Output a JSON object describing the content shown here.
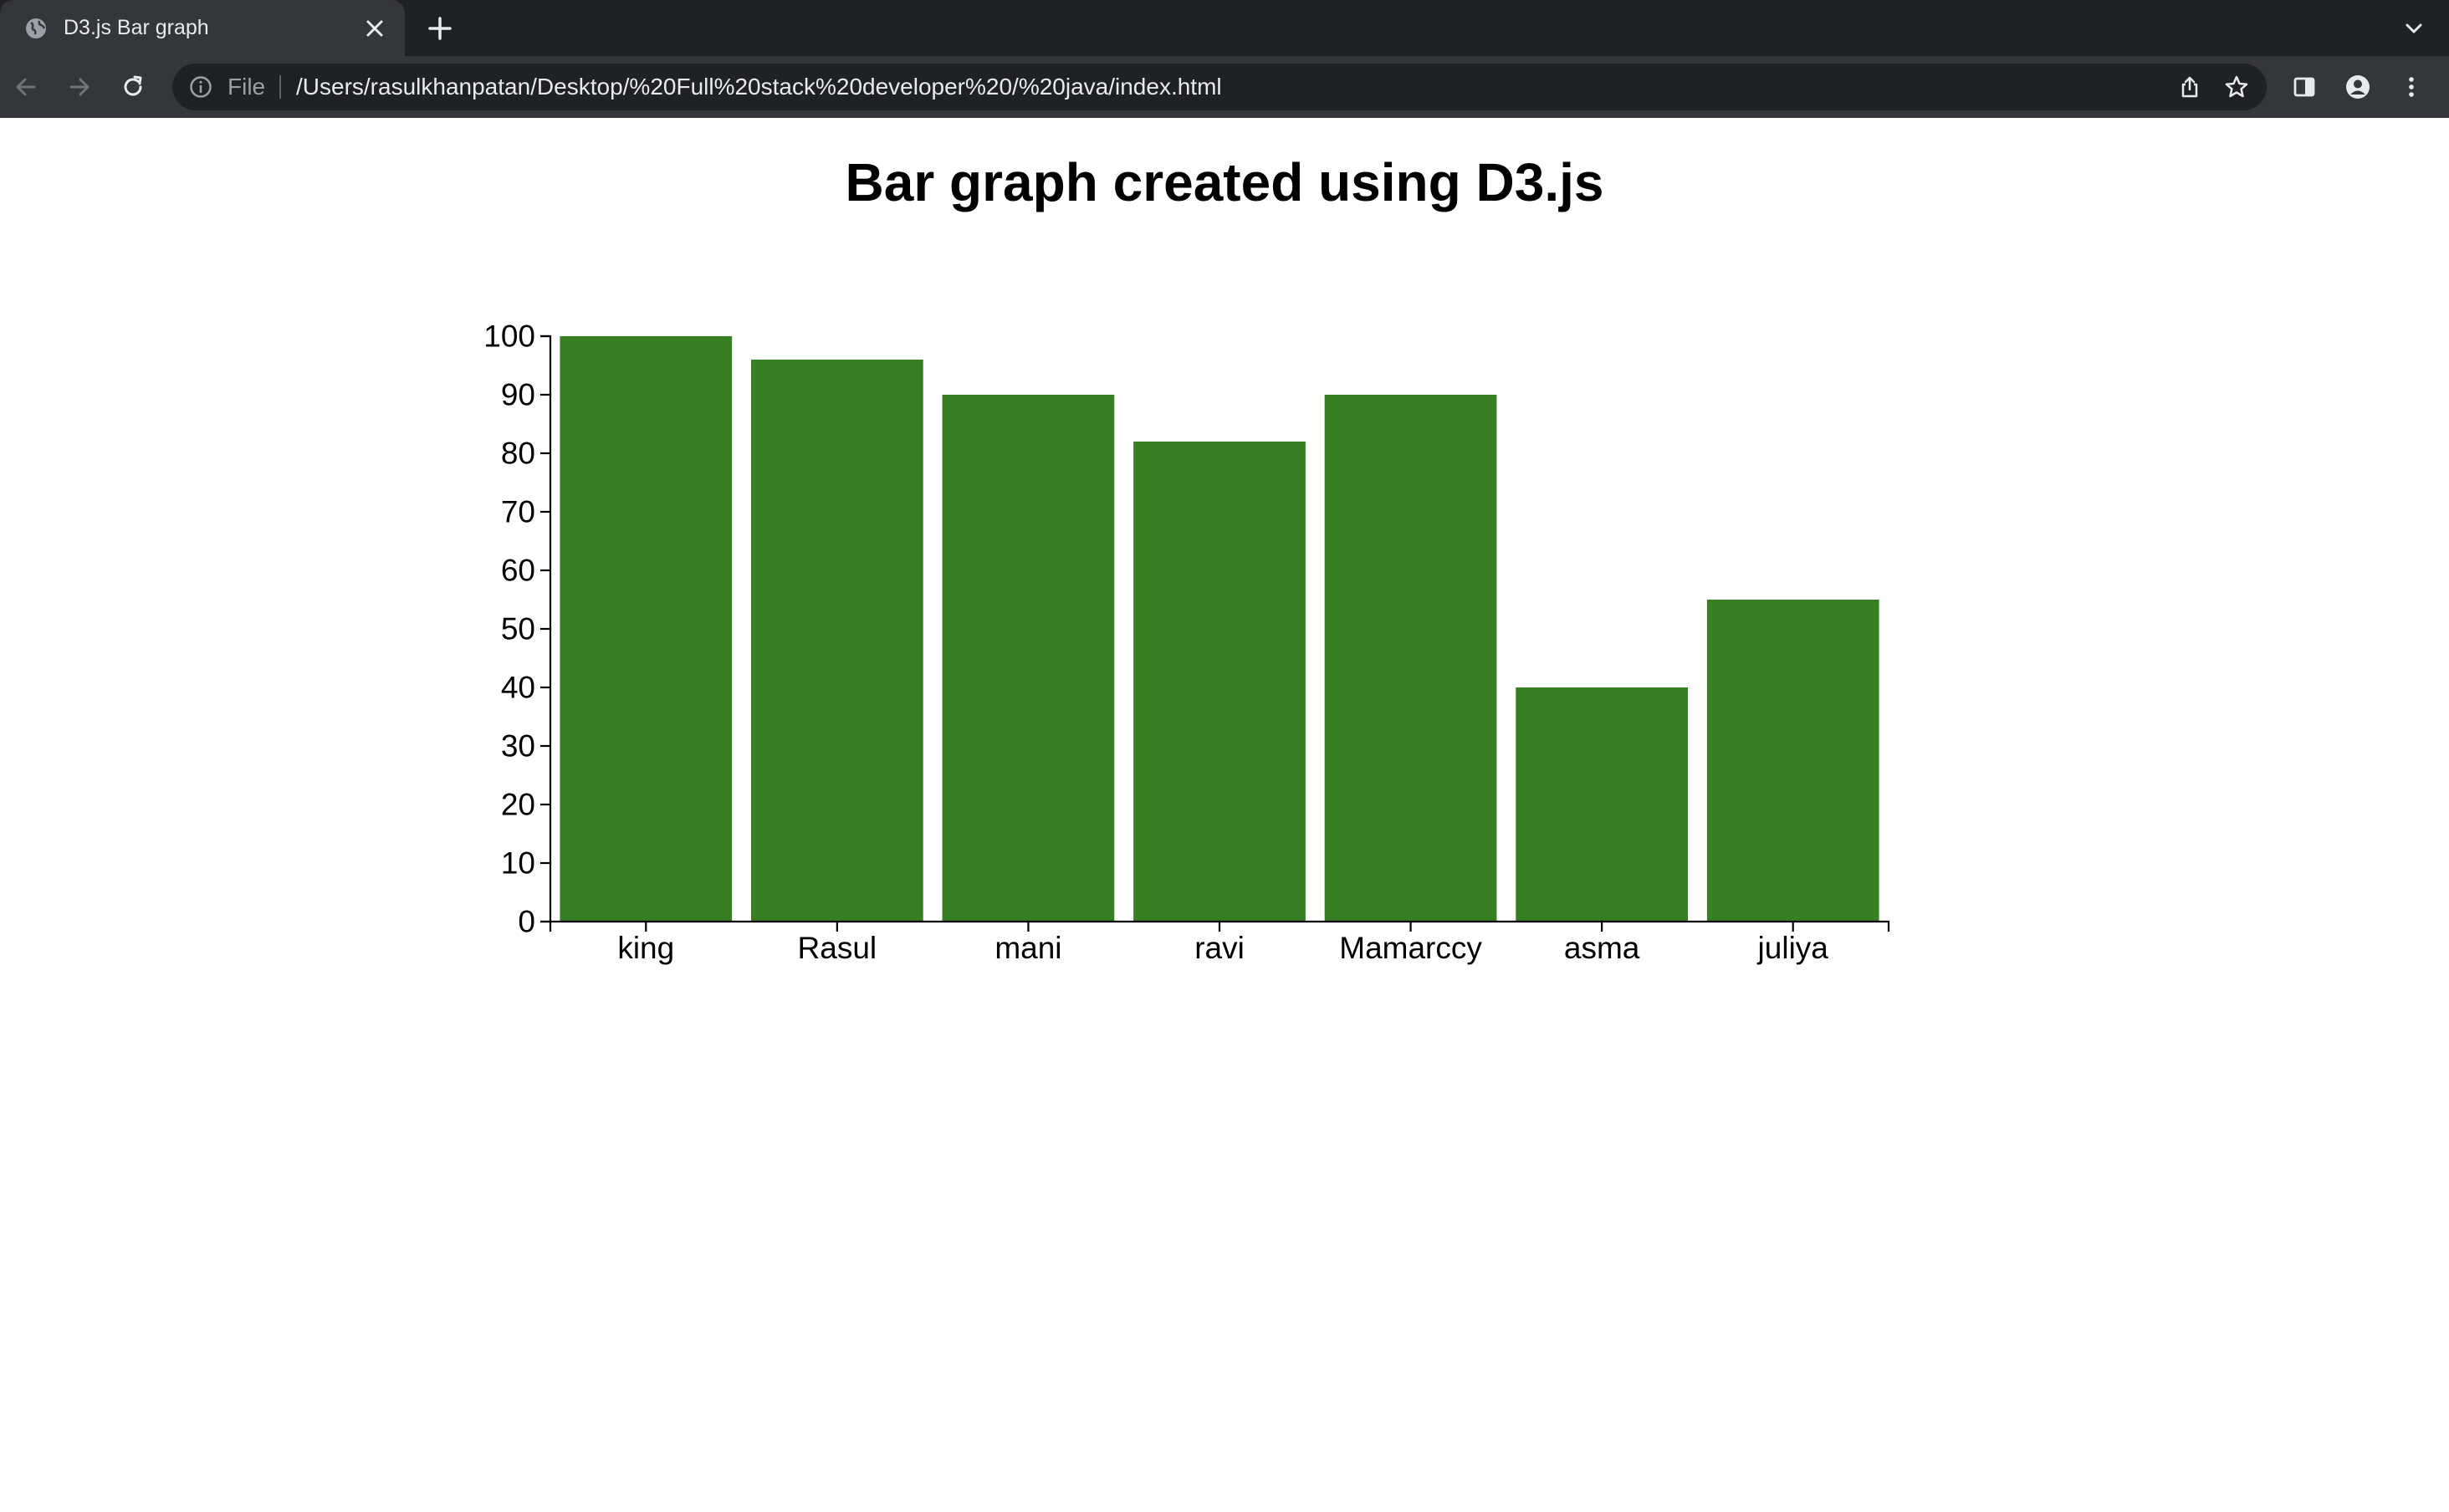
{
  "browser": {
    "tab_title": "D3.js Bar graph",
    "address_scheme": "File",
    "address_url": "/Users/rasulkhanpatan/Desktop/%20Full%20stack%20developer%20/%20java/index.html",
    "icons": [
      "globe-icon",
      "close-icon",
      "plus-icon",
      "chevron-down-icon",
      "back-arrow-icon",
      "forward-arrow-icon",
      "reload-icon",
      "info-icon",
      "share-icon",
      "star-icon",
      "side-panel-icon",
      "profile-icon",
      "kebab-menu-icon"
    ]
  },
  "page": {
    "title": "Bar graph created using D3.js"
  },
  "chart_data": {
    "type": "bar",
    "categories": [
      "king",
      "Rasul",
      "mani",
      "ravi",
      "Mamarccy",
      "asma",
      "juliya"
    ],
    "values": [
      100,
      96,
      90,
      82,
      90,
      40,
      55
    ],
    "ylim": [
      0,
      100
    ],
    "yticks": [
      0,
      10,
      20,
      30,
      40,
      50,
      60,
      70,
      80,
      90,
      100
    ],
    "bar_color": "#387e23",
    "grid": false,
    "title": "",
    "xlabel": "",
    "ylabel": ""
  }
}
